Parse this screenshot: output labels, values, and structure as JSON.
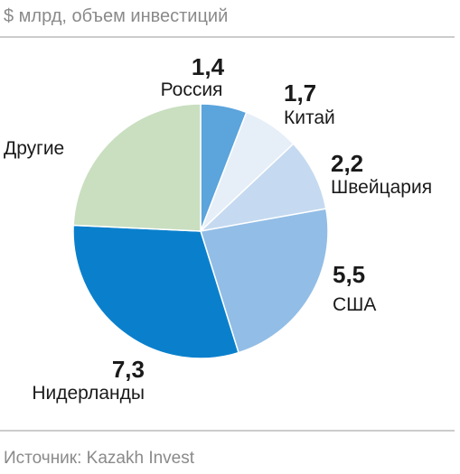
{
  "chart_data": {
    "type": "pie",
    "subtitle": "$ млрд, объем инвестиций",
    "source": "Источник: Kazakh Invest",
    "categories": [
      "Россия",
      "Китай",
      "Швейцария",
      "США",
      "Нидерланды",
      "Другие"
    ],
    "values": [
      1.4,
      1.7,
      2.2,
      5.5,
      7.3,
      5.8
    ],
    "value_labels": [
      "1,4",
      "1,7",
      "2,2",
      "5,5",
      "7,3",
      ""
    ],
    "colors": [
      "#5ba4dc",
      "#e6eef8",
      "#c5daf0",
      "#92bde6",
      "#0a80cc",
      "#c9dfc0"
    ]
  }
}
